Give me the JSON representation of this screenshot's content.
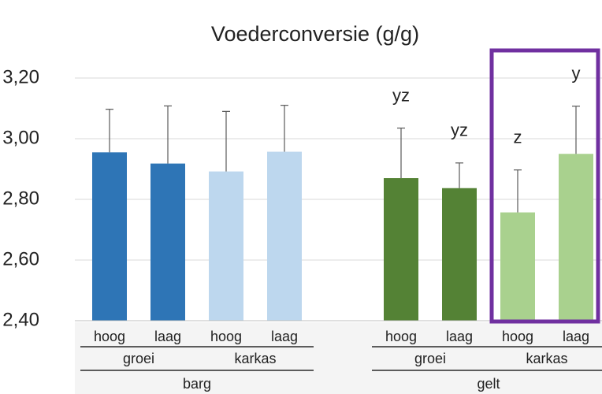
{
  "chart_data": {
    "type": "bar",
    "title": "Voederconversie (g/g)",
    "categories": [
      "hoog",
      "laag",
      "hoog",
      "laag",
      "hoog",
      "laag",
      "hoog",
      "laag"
    ],
    "groups": [
      {
        "label": "barg",
        "subgroups": [
          "groei",
          "karkas"
        ]
      },
      {
        "label": "gelt",
        "subgroups": [
          "groei",
          "karkas"
        ]
      }
    ],
    "values": [
      2.955,
      2.918,
      2.892,
      2.957,
      2.87,
      2.837,
      2.757,
      2.95
    ],
    "errors": [
      0.142,
      0.19,
      0.198,
      0.153,
      0.165,
      0.083,
      0.14,
      0.157
    ],
    "letters": [
      null,
      null,
      null,
      null,
      "yz",
      "yz",
      "z",
      "y"
    ],
    "colors": [
      "#2e75b6",
      "#2e75b6",
      "#bdd7ee",
      "#bdd7ee",
      "#548235",
      "#548235",
      "#a9d18e",
      "#a9d18e"
    ],
    "error_color": "#595959",
    "ylim": [
      2.4,
      3.3
    ],
    "yticks": [
      {
        "value": 2.4,
        "label": "2,40"
      },
      {
        "value": 2.6,
        "label": "2,60"
      },
      {
        "value": 2.8,
        "label": "2,80"
      },
      {
        "value": 3.0,
        "label": "3,00"
      },
      {
        "value": 3.2,
        "label": "3,20"
      }
    ],
    "grid": true
  }
}
